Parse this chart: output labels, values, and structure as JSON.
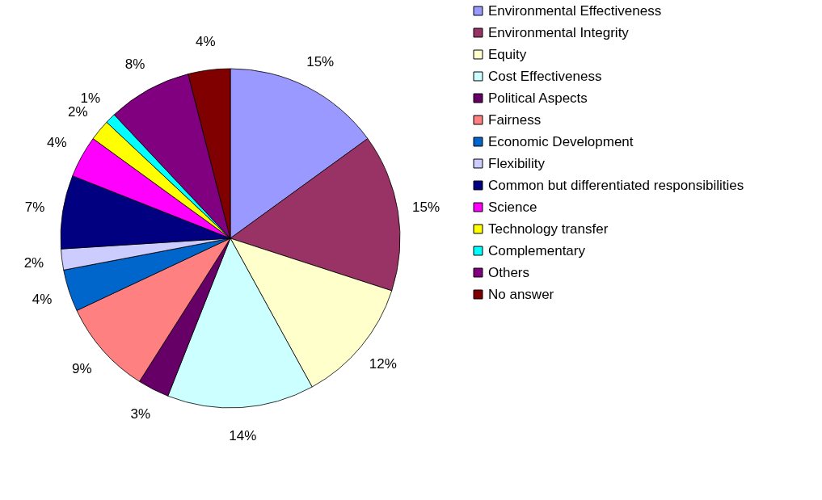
{
  "chart_data": {
    "type": "pie",
    "categories": [
      "Environmental Effectiveness",
      "Environmental Integrity",
      "Equity",
      "Cost Effectiveness",
      "Political Aspects",
      "Fairness",
      "Economic Development",
      "Flexibility",
      "Common but differentiated responsibilities",
      "Science",
      "Technology transfer",
      "Complementary",
      "Others",
      "No answer"
    ],
    "values": [
      15,
      15,
      12,
      14,
      3,
      9,
      4,
      2,
      7,
      4,
      2,
      1,
      8,
      4
    ],
    "value_labels": [
      "15%",
      "15%",
      "12%",
      "14%",
      "3%",
      "9%",
      "4%",
      "2%",
      "7%",
      "4%",
      "2%",
      "1%",
      "8%",
      "4%"
    ],
    "colors": [
      "#9999ff",
      "#993366",
      "#ffffcc",
      "#ccffff",
      "#660066",
      "#ff8080",
      "#0066cc",
      "#ccccff",
      "#000080",
      "#ff00ff",
      "#ffff00",
      "#00ffff",
      "#800080",
      "#800000"
    ],
    "legend": "right"
  }
}
